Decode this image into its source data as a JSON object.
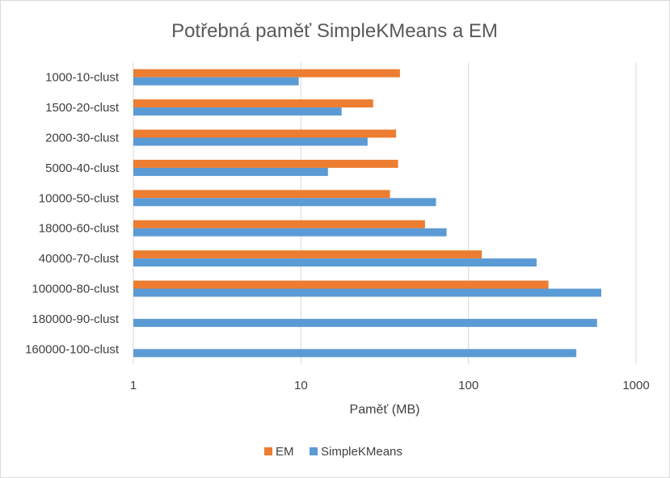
{
  "chart_data": {
    "type": "bar",
    "orientation": "horizontal",
    "title": "Potřebná paměť SimpleKMeans a EM",
    "xlabel": "Paměť (MB)",
    "ylabel": "",
    "x_scale": "log",
    "xlim": [
      1,
      1000
    ],
    "x_ticks": [
      "1",
      "10",
      "100",
      "1000"
    ],
    "grid": true,
    "legend_position": "bottom",
    "categories": [
      "1000-10-clust",
      "1500-20-clust",
      "2000-30-clust",
      "5000-40-clust",
      "10000-50-clust",
      "18000-60-clust",
      "40000-70-clust",
      "100000-80-clust",
      "180000-90-clust",
      "160000-100-clust"
    ],
    "series": [
      {
        "name": "EM",
        "color": "#ED7D31",
        "values": [
          39,
          27,
          37,
          38,
          34,
          55,
          120,
          300,
          null,
          null
        ]
      },
      {
        "name": "SimpleKMeans",
        "color": "#5B9BD5",
        "values": [
          9.7,
          17.5,
          25,
          14.5,
          64,
          74,
          255,
          620,
          585,
          440
        ]
      }
    ]
  }
}
